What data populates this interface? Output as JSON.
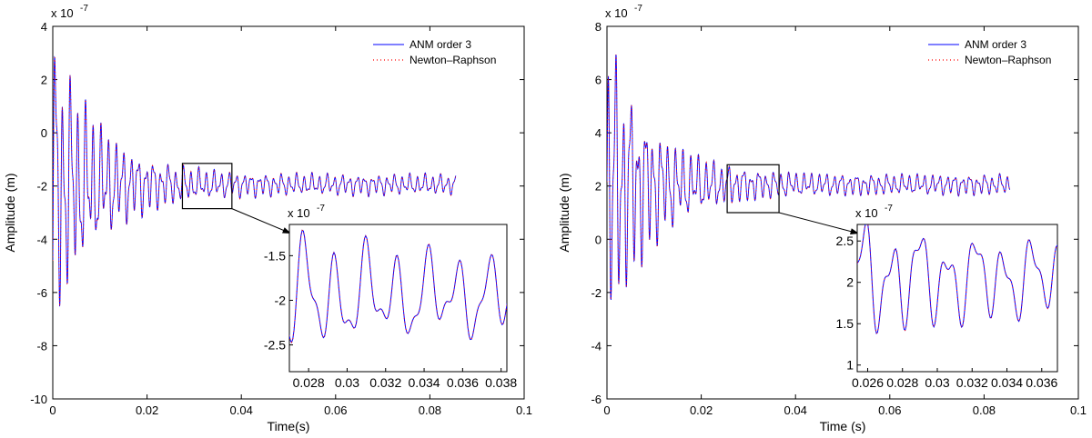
{
  "colors": {
    "anm": "#0000ff",
    "newton": "#ff0000",
    "axes": "#000000"
  },
  "chart_data": [
    {
      "type": "line",
      "xlabel": "Time(s)",
      "ylabel": "Amplitude (m)",
      "xlim": [
        0,
        0.1
      ],
      "ylim": [
        -10,
        4
      ],
      "y_multiplier": "x 10",
      "y_multiplier_exp": "-7",
      "x_ticks": [
        "0",
        "0.02",
        "0.04",
        "0.06",
        "0.08",
        "0.1"
      ],
      "y_ticks": [
        "4",
        "2",
        "0",
        "-2",
        "-4",
        "-6",
        "-8",
        "-10"
      ],
      "legend_position": "top-right",
      "series": [
        {
          "name": "ANM order 3",
          "style": "solid"
        },
        {
          "name": "Newton–Raphson",
          "style": "dotted"
        }
      ],
      "signal": {
        "x_end": 0.0855,
        "mean": -1.95,
        "initial_amplitude": 6.3,
        "steady_amplitude": 0.45,
        "period": 0.0016
      },
      "zoom_box": {
        "x": [
          0.0275,
          0.038
        ],
        "y": [
          -2.85,
          -1.15
        ]
      },
      "inset": {
        "y_multiplier": "x 10",
        "y_multiplier_exp": "-7",
        "xlim": [
          0.027,
          0.0383
        ],
        "ylim": [
          -2.8,
          -1.15
        ],
        "x_ticks": [
          "0.028",
          "0.03",
          "0.032",
          "0.034",
          "0.036",
          "0.038"
        ],
        "y_ticks": [
          "-1.5",
          "-2",
          "-2.5"
        ]
      }
    },
    {
      "type": "line",
      "xlabel": "Time (s)",
      "ylabel": "Amplitude (m)",
      "xlim": [
        0,
        0.1
      ],
      "ylim": [
        -6,
        8
      ],
      "y_multiplier": "x 10",
      "y_multiplier_exp": "-7",
      "x_ticks": [
        "0",
        "0.02",
        "0.04",
        "0.06",
        "0.08",
        "0.1"
      ],
      "y_ticks": [
        "8",
        "6",
        "4",
        "2",
        "0",
        "-2",
        "-4",
        "-6"
      ],
      "legend_position": "top-right",
      "series": [
        {
          "name": "ANM order 3",
          "style": "solid"
        },
        {
          "name": "Newton–Raphson",
          "style": "dotted"
        }
      ],
      "signal": {
        "x_end": 0.0855,
        "mean": 2.05,
        "initial_amplitude": 6.3,
        "steady_amplitude": 0.45,
        "period": 0.0016
      },
      "zoom_box": {
        "x": [
          0.0255,
          0.0365
        ],
        "y": [
          1.0,
          2.8
        ]
      },
      "inset": {
        "y_multiplier": "x 10",
        "y_multiplier_exp": "-7",
        "xlim": [
          0.0254,
          0.0369
        ],
        "ylim": [
          0.92,
          2.7
        ],
        "x_ticks": [
          "0.026",
          "0.028",
          "0.03",
          "0.032",
          "0.034",
          "0.036"
        ],
        "y_ticks": [
          "2.5",
          "2",
          "1.5",
          "1"
        ]
      }
    }
  ]
}
